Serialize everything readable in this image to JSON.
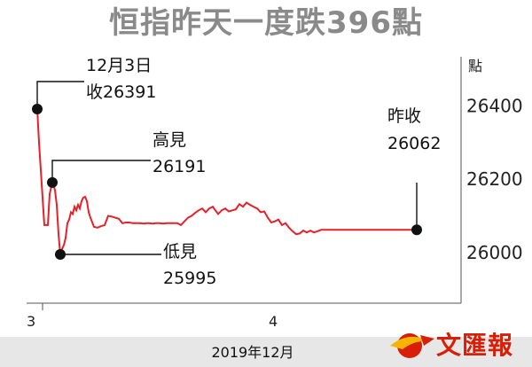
{
  "title": "恒指昨天一度跌396點",
  "unit_label": "點",
  "date_label": "2019年12月",
  "logo_text": "文匯報",
  "colors": {
    "line": "#e8202a",
    "marker": "#111111",
    "title": "#8a8a8a"
  },
  "chart_data": {
    "type": "line",
    "title": "恒指昨天一度跌396點",
    "xlabel": "2019年12月",
    "ylabel": "點",
    "ylim": [
      25940,
      26470
    ],
    "y_ticks": [
      26400,
      26200,
      26000
    ],
    "x_ticks": [
      "3",
      "4"
    ],
    "x": [
      0,
      2,
      8,
      10,
      12,
      14,
      16,
      17,
      18,
      20,
      22,
      24,
      26,
      28,
      30,
      32,
      34,
      36,
      38,
      40,
      42,
      44,
      46,
      48,
      50,
      52,
      54,
      56,
      58,
      60,
      64,
      68,
      72,
      76,
      80,
      84,
      88,
      92,
      96,
      100,
      104,
      108,
      112,
      116,
      120,
      124,
      126,
      130,
      134,
      138,
      142,
      146,
      150,
      152,
      154,
      158,
      162,
      166,
      170,
      174,
      178,
      182,
      186,
      190,
      194,
      198,
      200,
      204,
      208,
      212,
      216,
      220,
      224,
      228,
      232,
      236,
      240,
      244,
      248,
      252,
      256,
      260,
      264,
      268,
      272,
      276,
      280,
      284,
      288,
      292,
      296,
      300,
      304,
      308,
      312,
      316,
      320,
      324,
      328,
      332,
      336,
      340,
      344,
      348,
      352,
      356,
      360,
      364,
      368,
      372,
      376,
      380,
      384,
      388,
      392,
      396,
      400,
      404,
      408,
      412,
      416,
      420,
      424,
      428
    ],
    "series": [
      {
        "values": [
          26391,
          26300,
          26075,
          26075,
          26075,
          26160,
          26180,
          26191,
          26185,
          26170,
          26130,
          26050,
          25995,
          26010,
          26020,
          26040,
          26080,
          26090,
          26110,
          26105,
          26125,
          26115,
          26130,
          26120,
          26140,
          26150,
          26152,
          26140,
          26110,
          26095,
          26070,
          26068,
          26072,
          26075,
          26100,
          26098,
          26095,
          26092,
          26080,
          26082,
          26082,
          26080,
          26080,
          26080,
          26079,
          26080,
          26080,
          26079,
          26080,
          26080,
          26079,
          26080,
          26080,
          26080,
          26080,
          26080,
          26075,
          26085,
          26095,
          26100,
          26108,
          26115,
          26120,
          26110,
          26120,
          26125,
          26118,
          26105,
          26115,
          26120,
          26112,
          26115,
          26118,
          26132,
          26125,
          26136,
          26130,
          26125,
          26120,
          26110,
          26112,
          26095,
          26082,
          26085,
          26090,
          26075,
          26080,
          26068,
          26058,
          26050,
          26052,
          26060,
          26055,
          26060,
          26055,
          26058,
          26062,
          26062,
          26062,
          26062,
          26062,
          26062,
          26062,
          26062,
          26062,
          26062,
          26062,
          26062,
          26062,
          26062,
          26062,
          26062,
          26062,
          26062,
          26062,
          26062,
          26062,
          26062,
          26062,
          26062,
          26062,
          26062,
          26062,
          26062
        ]
      }
    ],
    "annotations": [
      {
        "line1": "12月3日",
        "line2": "收26391",
        "x": 0,
        "y": 26391
      },
      {
        "line1": "高見",
        "line2": "26191",
        "x": 17,
        "y": 26191
      },
      {
        "line1": "低見",
        "line2": "25995",
        "x": 26,
        "y": 25995
      },
      {
        "line1": "昨收",
        "line2": "26062",
        "x": 428,
        "y": 26062
      }
    ]
  }
}
